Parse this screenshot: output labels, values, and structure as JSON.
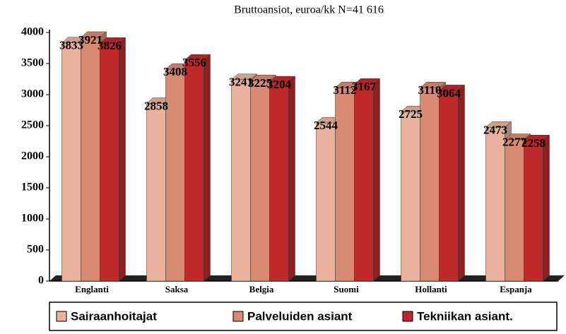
{
  "chart_data": {
    "type": "bar3d",
    "title": "Bruttoansiot, euroa/kk  N=41 616",
    "categories": [
      "Englanti",
      "Saksa",
      "Belgia",
      "Suomi",
      "Hollanti",
      "Espanja"
    ],
    "series": [
      {
        "name": "Sairaanhoitajat",
        "color": "#e8b29c",
        "values": [
          3833,
          2858,
          3241,
          2544,
          2725,
          2473
        ]
      },
      {
        "name": "Palveluiden asiant",
        "color": "#d98a72",
        "values": [
          3921,
          3408,
          3225,
          3112,
          3110,
          2277
        ]
      },
      {
        "name": "Tekniikan asiant.",
        "color": "#c0282a",
        "values": [
          3826,
          3556,
          3204,
          3167,
          3064,
          2258
        ]
      }
    ],
    "ylim": [
      0,
      4000
    ],
    "yticks": [
      0,
      500,
      1000,
      1500,
      2000,
      2500,
      3000,
      3500,
      4000
    ],
    "legend": "bottom"
  }
}
